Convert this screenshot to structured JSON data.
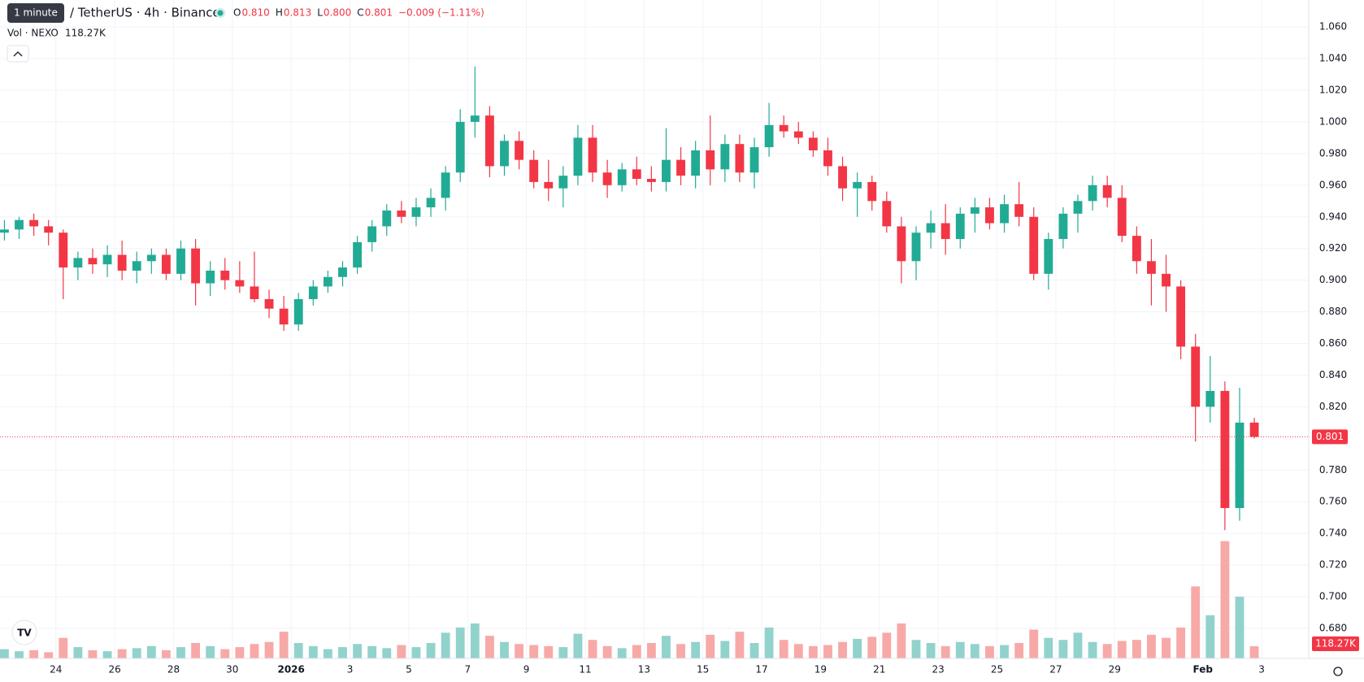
{
  "chart_data": {
    "type": "candlestick",
    "title": "/ TetherUS · 4h · Binance",
    "tooltip": "1 minute",
    "ohlc_legend": {
      "O": "O",
      "open": "0.810",
      "H": "H",
      "high": "0.813",
      "L": "L",
      "low": "0.800",
      "C": "C",
      "close": "0.801",
      "change": "−0.009 (−1.11%)"
    },
    "volume_title": "Vol · NEXO",
    "volume_label": "118.27K",
    "up_color": "#22ab94",
    "down_color": "#f23645",
    "up_volume_color": "#92d2cc",
    "down_volume_color": "#f7a9a7",
    "open": [
      0.93,
      0.932,
      0.938,
      0.934,
      0.93,
      0.908,
      0.914,
      0.91,
      0.916,
      0.906,
      0.912,
      0.916,
      0.904,
      0.92,
      0.898,
      0.906,
      0.9,
      0.896,
      0.888,
      0.882,
      0.872,
      0.888,
      0.896,
      0.902,
      0.908,
      0.924,
      0.934,
      0.944,
      0.94,
      0.946,
      0.952,
      0.968,
      1.0,
      1.004,
      0.972,
      0.988,
      0.976,
      0.962,
      0.958,
      0.966,
      0.99,
      0.968,
      0.96,
      0.97,
      0.964,
      0.962,
      0.976,
      0.966,
      0.982,
      0.97,
      0.986,
      0.968,
      0.984,
      0.998,
      0.994,
      0.99,
      0.982,
      0.972,
      0.958,
      0.962,
      0.95,
      0.934,
      0.912,
      0.93,
      0.936,
      0.926,
      0.942,
      0.946,
      0.936,
      0.948,
      0.94,
      0.904,
      0.926,
      0.942,
      0.95,
      0.96,
      0.952,
      0.928,
      0.912,
      0.904,
      0.896,
      0.858,
      0.82,
      0.83,
      0.756,
      0.81
    ],
    "high": [
      0.938,
      0.94,
      0.942,
      0.938,
      0.932,
      0.918,
      0.92,
      0.922,
      0.925,
      0.918,
      0.92,
      0.92,
      0.925,
      0.926,
      0.912,
      0.914,
      0.912,
      0.918,
      0.894,
      0.89,
      0.892,
      0.9,
      0.906,
      0.912,
      0.928,
      0.938,
      0.948,
      0.95,
      0.952,
      0.958,
      0.972,
      1.008,
      1.035,
      1.01,
      0.992,
      0.994,
      0.982,
      0.976,
      0.972,
      0.998,
      0.998,
      0.976,
      0.974,
      0.978,
      0.972,
      0.996,
      0.984,
      0.988,
      1.004,
      0.992,
      0.992,
      0.99,
      1.012,
      1.004,
      1.0,
      0.994,
      0.99,
      0.978,
      0.968,
      0.966,
      0.956,
      0.94,
      0.934,
      0.944,
      0.948,
      0.946,
      0.952,
      0.952,
      0.954,
      0.962,
      0.946,
      0.93,
      0.946,
      0.954,
      0.966,
      0.966,
      0.96,
      0.934,
      0.926,
      0.916,
      0.9,
      0.866,
      0.852,
      0.836,
      0.832,
      0.813
    ],
    "low": [
      0.925,
      0.926,
      0.928,
      0.922,
      0.888,
      0.9,
      0.904,
      0.902,
      0.9,
      0.898,
      0.904,
      0.9,
      0.9,
      0.884,
      0.89,
      0.894,
      0.892,
      0.886,
      0.876,
      0.868,
      0.868,
      0.884,
      0.892,
      0.896,
      0.904,
      0.918,
      0.928,
      0.936,
      0.934,
      0.94,
      0.944,
      0.962,
      0.99,
      0.965,
      0.966,
      0.97,
      0.958,
      0.95,
      0.946,
      0.96,
      0.962,
      0.952,
      0.956,
      0.96,
      0.956,
      0.956,
      0.96,
      0.958,
      0.96,
      0.962,
      0.962,
      0.958,
      0.978,
      0.99,
      0.986,
      0.978,
      0.966,
      0.95,
      0.94,
      0.944,
      0.93,
      0.898,
      0.9,
      0.92,
      0.916,
      0.92,
      0.93,
      0.932,
      0.93,
      0.934,
      0.9,
      0.894,
      0.92,
      0.93,
      0.944,
      0.946,
      0.924,
      0.904,
      0.884,
      0.88,
      0.85,
      0.798,
      0.81,
      0.742,
      0.748,
      0.8
    ],
    "close": [
      0.932,
      0.938,
      0.934,
      0.93,
      0.908,
      0.914,
      0.91,
      0.916,
      0.906,
      0.912,
      0.916,
      0.904,
      0.92,
      0.898,
      0.906,
      0.9,
      0.896,
      0.888,
      0.882,
      0.872,
      0.888,
      0.896,
      0.902,
      0.908,
      0.924,
      0.934,
      0.944,
      0.94,
      0.946,
      0.952,
      0.968,
      1.0,
      1.004,
      0.972,
      0.988,
      0.976,
      0.962,
      0.958,
      0.966,
      0.99,
      0.968,
      0.96,
      0.97,
      0.964,
      0.962,
      0.976,
      0.966,
      0.982,
      0.97,
      0.986,
      0.968,
      0.984,
      0.998,
      0.994,
      0.99,
      0.982,
      0.972,
      0.958,
      0.962,
      0.95,
      0.934,
      0.912,
      0.93,
      0.936,
      0.926,
      0.942,
      0.946,
      0.936,
      0.948,
      0.94,
      0.904,
      0.926,
      0.942,
      0.95,
      0.96,
      0.952,
      0.928,
      0.912,
      0.904,
      0.896,
      0.858,
      0.82,
      0.83,
      0.756,
      0.81,
      0.801
    ],
    "volume": [
      90,
      70,
      80,
      60,
      200,
      110,
      80,
      70,
      90,
      100,
      120,
      80,
      110,
      150,
      120,
      90,
      110,
      140,
      160,
      260,
      150,
      120,
      90,
      110,
      140,
      120,
      100,
      130,
      110,
      150,
      250,
      300,
      340,
      220,
      160,
      140,
      130,
      120,
      110,
      240,
      180,
      120,
      100,
      130,
      150,
      220,
      140,
      160,
      230,
      170,
      260,
      150,
      300,
      180,
      140,
      120,
      130,
      160,
      190,
      210,
      250,
      340,
      180,
      150,
      120,
      160,
      140,
      120,
      130,
      150,
      280,
      200,
      180,
      250,
      160,
      140,
      170,
      180,
      230,
      200,
      300,
      700,
      420,
      1140,
      600,
      118.27
    ],
    "ylim": [
      0.661,
      1.077
    ],
    "y2lim": [
      0,
      6400
    ],
    "xlim": [
      -0.3,
      88.7
    ],
    "yticks": [
      {
        "value": 0.68,
        "label": "0.680"
      },
      {
        "value": 0.7,
        "label": "0.700"
      },
      {
        "value": 0.72,
        "label": "0.720"
      },
      {
        "value": 0.74,
        "label": "0.740"
      },
      {
        "value": 0.76,
        "label": "0.760"
      },
      {
        "value": 0.78,
        "label": "0.780"
      },
      {
        "value": 0.82,
        "label": "0.820"
      },
      {
        "value": 0.84,
        "label": "0.840"
      },
      {
        "value": 0.86,
        "label": "0.860"
      },
      {
        "value": 0.88,
        "label": "0.880"
      },
      {
        "value": 0.9,
        "label": "0.900"
      },
      {
        "value": 0.92,
        "label": "0.920"
      },
      {
        "value": 0.94,
        "label": "0.940"
      },
      {
        "value": 0.96,
        "label": "0.960"
      },
      {
        "value": 0.98,
        "label": "0.980"
      },
      {
        "value": 1.0,
        "label": "1.000"
      },
      {
        "value": 1.02,
        "label": "1.020"
      },
      {
        "value": 1.04,
        "label": "1.040"
      },
      {
        "value": 1.06,
        "label": "1.060"
      }
    ],
    "xticks": [
      {
        "value": 3.5,
        "label": "24"
      },
      {
        "value": 7.5,
        "label": "26"
      },
      {
        "value": 11.5,
        "label": "28"
      },
      {
        "value": 15.5,
        "label": "30"
      },
      {
        "value": 19.5,
        "label": "2026"
      },
      {
        "value": 23.5,
        "label": "3"
      },
      {
        "value": 27.5,
        "label": "5"
      },
      {
        "value": 31.5,
        "label": "7"
      },
      {
        "value": 35.5,
        "label": "9"
      },
      {
        "value": 39.5,
        "label": "11"
      },
      {
        "value": 43.5,
        "label": "13"
      },
      {
        "value": 47.5,
        "label": "15"
      },
      {
        "value": 51.5,
        "label": "17"
      },
      {
        "value": 55.5,
        "label": "19"
      },
      {
        "value": 59.5,
        "label": "21"
      },
      {
        "value": 63.5,
        "label": "23"
      },
      {
        "value": 67.5,
        "label": "25"
      },
      {
        "value": 71.5,
        "label": "27"
      },
      {
        "value": 75.5,
        "label": "29"
      },
      {
        "value": 81.5,
        "label": "Feb"
      },
      {
        "value": 85.5,
        "label": "3"
      }
    ],
    "last_price": {
      "value": 0.801,
      "label": "0.801"
    },
    "grid": true
  }
}
